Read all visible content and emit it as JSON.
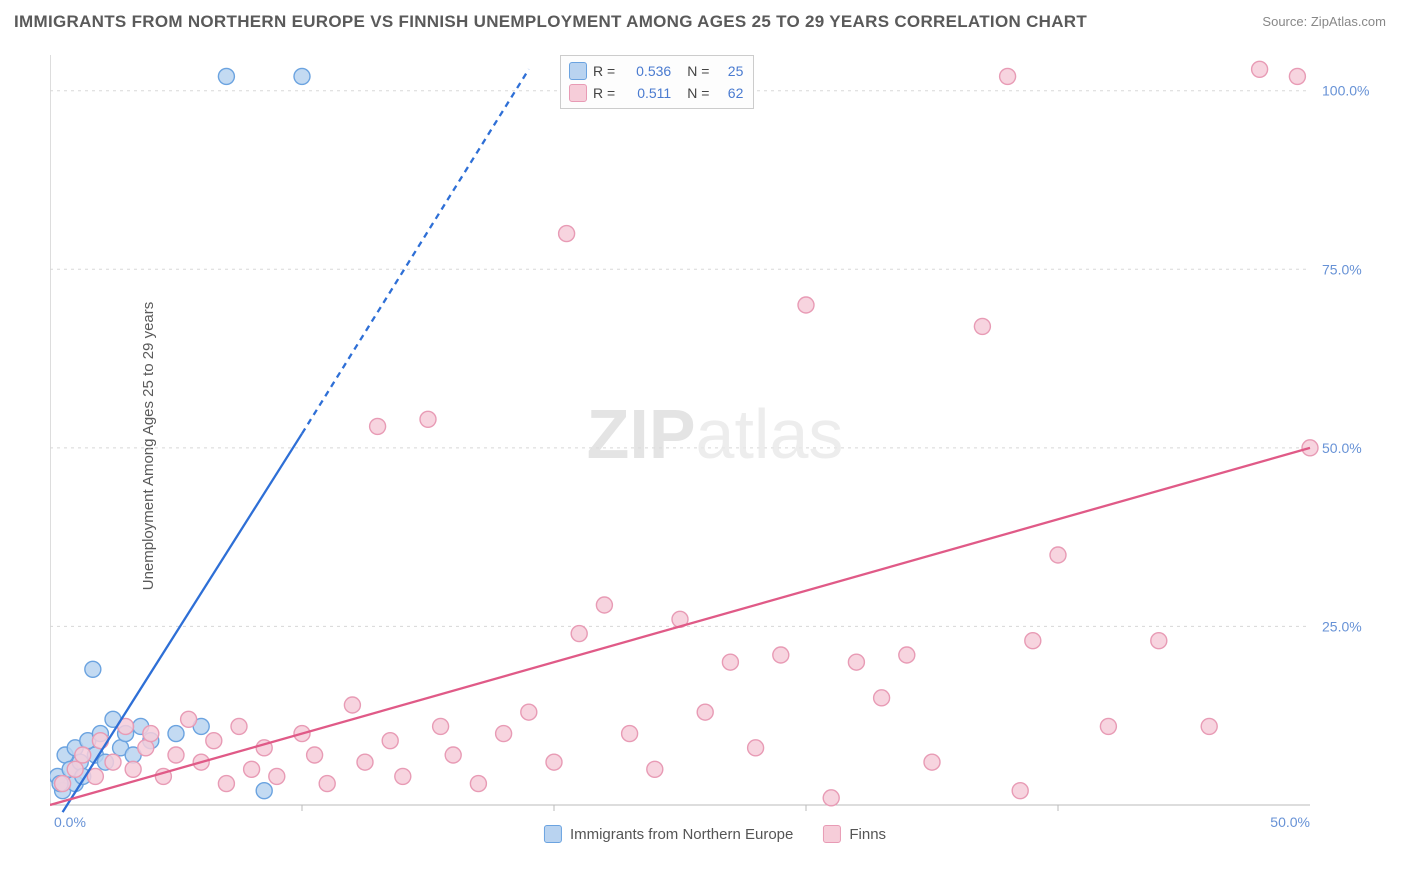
{
  "title": "IMMIGRANTS FROM NORTHERN EUROPE VS FINNISH UNEMPLOYMENT AMONG AGES 25 TO 29 YEARS CORRELATION CHART",
  "source_label": "Source:",
  "source_name": "ZipAtlas.com",
  "y_axis_label": "Unemployment Among Ages 25 to 29 years",
  "watermark_bold": "ZIP",
  "watermark_rest": "atlas",
  "chart": {
    "type": "scatter",
    "background_color": "#ffffff",
    "grid_color": "#d8d8d8",
    "xlim": [
      0,
      50
    ],
    "ylim": [
      0,
      105
    ],
    "x_ticks": [
      0,
      50
    ],
    "x_tick_labels": [
      "0.0%",
      "50.0%"
    ],
    "y_ticks": [
      25,
      50,
      75,
      100
    ],
    "y_tick_labels": [
      "25.0%",
      "50.0%",
      "75.0%",
      "100.0%"
    ],
    "x_minor_grid_step": 10,
    "series": [
      {
        "name": "Immigrants from Northern Europe",
        "color_fill": "#b9d3f0",
        "color_stroke": "#6ba3e0",
        "swatch_fill": "#b9d3f0",
        "swatch_stroke": "#6ba3e0",
        "marker_radius": 8,
        "R": "0.536",
        "N": "25",
        "regression": {
          "solid": {
            "x1": 0.5,
            "y1": -1,
            "x2": 10.0,
            "y2": 52
          },
          "dashed": {
            "x1": 10.0,
            "y1": 52,
            "x2": 19.0,
            "y2": 103
          },
          "stroke": "#2e6fd6",
          "width": 2.3,
          "dash": "6,5"
        },
        "points": [
          [
            0.3,
            4
          ],
          [
            0.5,
            2
          ],
          [
            0.6,
            7
          ],
          [
            0.8,
            5
          ],
          [
            1.0,
            3
          ],
          [
            1.0,
            8
          ],
          [
            1.2,
            6
          ],
          [
            1.3,
            4
          ],
          [
            1.5,
            9
          ],
          [
            1.7,
            19
          ],
          [
            1.8,
            7
          ],
          [
            2.0,
            10
          ],
          [
            2.2,
            6
          ],
          [
            2.5,
            12
          ],
          [
            2.8,
            8
          ],
          [
            3.0,
            10
          ],
          [
            3.3,
            7
          ],
          [
            3.6,
            11
          ],
          [
            4.0,
            9
          ],
          [
            5.0,
            10
          ],
          [
            6.0,
            11
          ],
          [
            7.0,
            102
          ],
          [
            8.5,
            2
          ],
          [
            10.0,
            102
          ],
          [
            0.4,
            3
          ]
        ]
      },
      {
        "name": "Finns",
        "color_fill": "#f6cdd9",
        "color_stroke": "#e89bb5",
        "swatch_fill": "#f6cdd9",
        "swatch_stroke": "#e89bb5",
        "marker_radius": 8,
        "R": "0.511",
        "N": "62",
        "regression": {
          "solid": {
            "x1": 0,
            "y1": 0,
            "x2": 50,
            "y2": 50
          },
          "stroke": "#e05a87",
          "width": 2.3
        },
        "points": [
          [
            0.5,
            3
          ],
          [
            1.0,
            5
          ],
          [
            1.3,
            7
          ],
          [
            1.8,
            4
          ],
          [
            2.0,
            9
          ],
          [
            2.5,
            6
          ],
          [
            3.0,
            11
          ],
          [
            3.3,
            5
          ],
          [
            3.8,
            8
          ],
          [
            4.0,
            10
          ],
          [
            4.5,
            4
          ],
          [
            5.0,
            7
          ],
          [
            5.5,
            12
          ],
          [
            6.0,
            6
          ],
          [
            6.5,
            9
          ],
          [
            7.0,
            3
          ],
          [
            7.5,
            11
          ],
          [
            8.0,
            5
          ],
          [
            8.5,
            8
          ],
          [
            9.0,
            4
          ],
          [
            10.0,
            10
          ],
          [
            10.5,
            7
          ],
          [
            11.0,
            3
          ],
          [
            12.0,
            14
          ],
          [
            12.5,
            6
          ],
          [
            13.0,
            53
          ],
          [
            13.5,
            9
          ],
          [
            14.0,
            4
          ],
          [
            15.0,
            54
          ],
          [
            15.5,
            11
          ],
          [
            16.0,
            7
          ],
          [
            17.0,
            3
          ],
          [
            18.0,
            10
          ],
          [
            19.0,
            13
          ],
          [
            20.0,
            6
          ],
          [
            20.5,
            80
          ],
          [
            21.0,
            24
          ],
          [
            22.0,
            28
          ],
          [
            23.0,
            10
          ],
          [
            24.0,
            5
          ],
          [
            25.0,
            26
          ],
          [
            26.0,
            13
          ],
          [
            27.0,
            20
          ],
          [
            28.0,
            8
          ],
          [
            29.0,
            21
          ],
          [
            30.0,
            70
          ],
          [
            31.0,
            1
          ],
          [
            32.0,
            20
          ],
          [
            33.0,
            15
          ],
          [
            34.0,
            21
          ],
          [
            35.0,
            6
          ],
          [
            37.0,
            67
          ],
          [
            38.0,
            102
          ],
          [
            38.5,
            2
          ],
          [
            39.0,
            23
          ],
          [
            40.0,
            35
          ],
          [
            42.0,
            11
          ],
          [
            44.0,
            23
          ],
          [
            46.0,
            11
          ],
          [
            48.0,
            103
          ],
          [
            49.5,
            102
          ],
          [
            50.0,
            50
          ]
        ]
      }
    ],
    "legend_bottom": [
      {
        "label": "Immigrants from Northern Europe",
        "fill": "#b9d3f0",
        "stroke": "#6ba3e0"
      },
      {
        "label": "Finns",
        "fill": "#f6cdd9",
        "stroke": "#e89bb5"
      }
    ]
  }
}
